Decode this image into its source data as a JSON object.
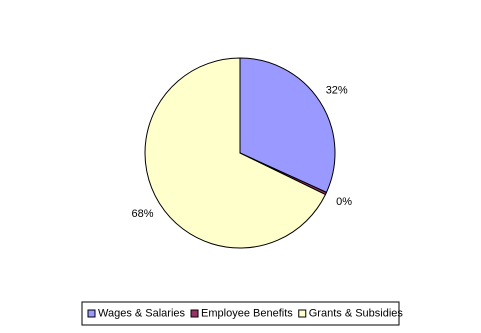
{
  "chart_data": {
    "type": "pie",
    "categories": [
      "Wages & Salaries",
      "Employee Benefits",
      "Grants & Subsidies"
    ],
    "values": [
      31.8,
      0.4,
      67.8
    ],
    "value_labels": [
      "32%",
      "0%",
      "68%"
    ],
    "colors": [
      "#9999ff",
      "#993366",
      "#ffffcc"
    ],
    "legend": "bottom"
  }
}
